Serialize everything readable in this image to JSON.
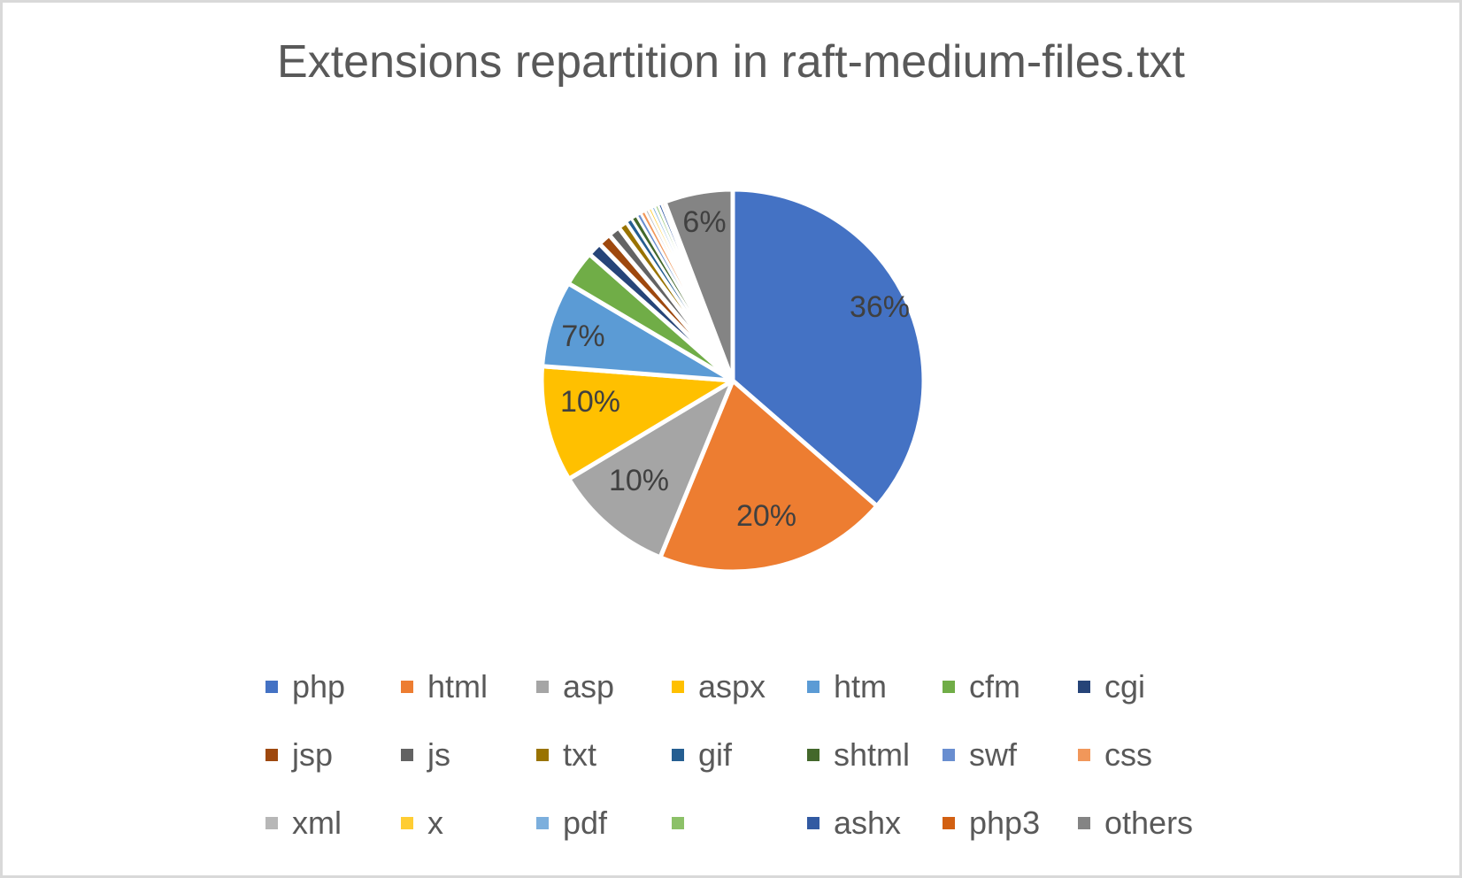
{
  "chart_data": {
    "type": "pie",
    "title": "Extensions repartition in raft-medium-files.txt",
    "xlabel": "",
    "ylabel": "",
    "legend_position": "bottom",
    "grid": false,
    "categories": [
      "php",
      "html",
      "asp",
      "aspx",
      "htm",
      "cfm",
      "cgi",
      "jsp",
      "js",
      "txt",
      "gif",
      "shtml",
      "swf",
      "css",
      "xml",
      "x",
      "pdf",
      "",
      "ashx",
      "php3",
      "others"
    ],
    "values": [
      36.4,
      19.8,
      10.2,
      9.8,
      7.3,
      3.0,
      1.2,
      1.1,
      1.0,
      0.8,
      0.5,
      0.5,
      0.4,
      0.4,
      0.3,
      0.3,
      0.3,
      0.3,
      0.3,
      0.3,
      5.8
    ],
    "data_labels": [
      "36%",
      "20%",
      "10%",
      "10%",
      "7%",
      "",
      "",
      "",
      "",
      "",
      "",
      "",
      "",
      "",
      "",
      "",
      "",
      "",
      "",
      "",
      "6%"
    ],
    "colors": [
      "#4472c4",
      "#ed7d31",
      "#a5a5a5",
      "#ffc000",
      "#5b9bd5",
      "#70ad47",
      "#264478",
      "#9e480e",
      "#636363",
      "#997300",
      "#255e91",
      "#43682b",
      "#698ed0",
      "#f1975a",
      "#b7b7b7",
      "#ffcd33",
      "#7cafdd",
      "#8cc168",
      "#325aa2",
      "#d26012",
      "#848484"
    ],
    "unit": "percent"
  },
  "legend": {
    "rows": [
      [
        {
          "label": "php",
          "color": "#4472c4"
        },
        {
          "label": "html",
          "color": "#ed7d31"
        },
        {
          "label": "asp",
          "color": "#a5a5a5"
        },
        {
          "label": "aspx",
          "color": "#ffc000"
        },
        {
          "label": "htm",
          "color": "#5b9bd5"
        },
        {
          "label": "cfm",
          "color": "#70ad47"
        },
        {
          "label": "cgi",
          "color": "#264478"
        }
      ],
      [
        {
          "label": "jsp",
          "color": "#9e480e"
        },
        {
          "label": "js",
          "color": "#636363"
        },
        {
          "label": "txt",
          "color": "#997300"
        },
        {
          "label": "gif",
          "color": "#255e91"
        },
        {
          "label": "shtml",
          "color": "#43682b"
        },
        {
          "label": "swf",
          "color": "#698ed0"
        },
        {
          "label": "css",
          "color": "#f1975a"
        }
      ],
      [
        {
          "label": "xml",
          "color": "#b7b7b7"
        },
        {
          "label": "x",
          "color": "#ffcd33"
        },
        {
          "label": "pdf",
          "color": "#7cafdd"
        },
        {
          "label": "",
          "color": "#8cc168"
        },
        {
          "label": "ashx",
          "color": "#325aa2"
        },
        {
          "label": "php3",
          "color": "#d26012"
        },
        {
          "label": "others",
          "color": "#848484"
        }
      ]
    ]
  }
}
